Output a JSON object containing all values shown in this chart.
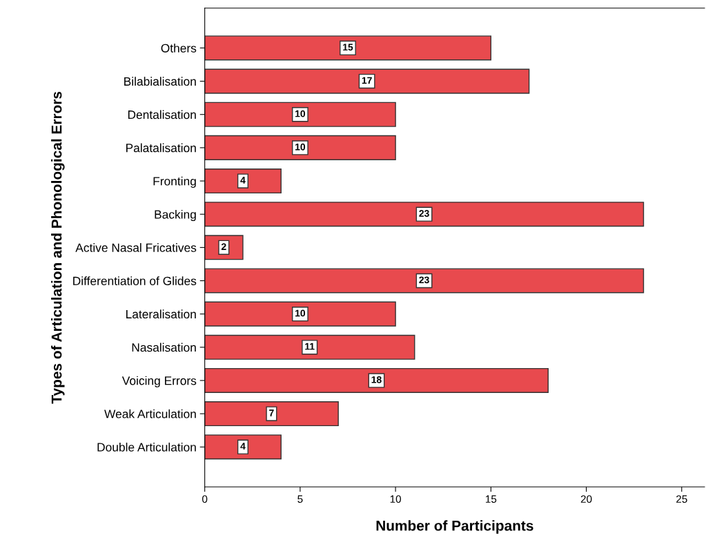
{
  "chart_data": {
    "type": "bar",
    "orientation": "horizontal",
    "xlabel": "Number of Participants",
    "ylabel": "Types of Articulation and Phonological Errors",
    "categories": [
      "Others",
      "Bilabialisation",
      "Dentalisation",
      "Palatalisation",
      "Fronting",
      "Backing",
      "Active Nasal Fricatives",
      "Differentiation of Glides",
      "Lateralisation",
      "Nasalisation",
      "Voicing Errors",
      "Weak Articulation",
      "Double Articulation"
    ],
    "values": [
      15,
      17,
      10,
      10,
      4,
      23,
      2,
      23,
      10,
      11,
      18,
      7,
      4
    ],
    "color": "#e84a4e",
    "data_labels": true,
    "grid": false,
    "xlim": [
      0,
      26.2
    ],
    "xticks": [
      0,
      5,
      10,
      15,
      20,
      25
    ]
  }
}
